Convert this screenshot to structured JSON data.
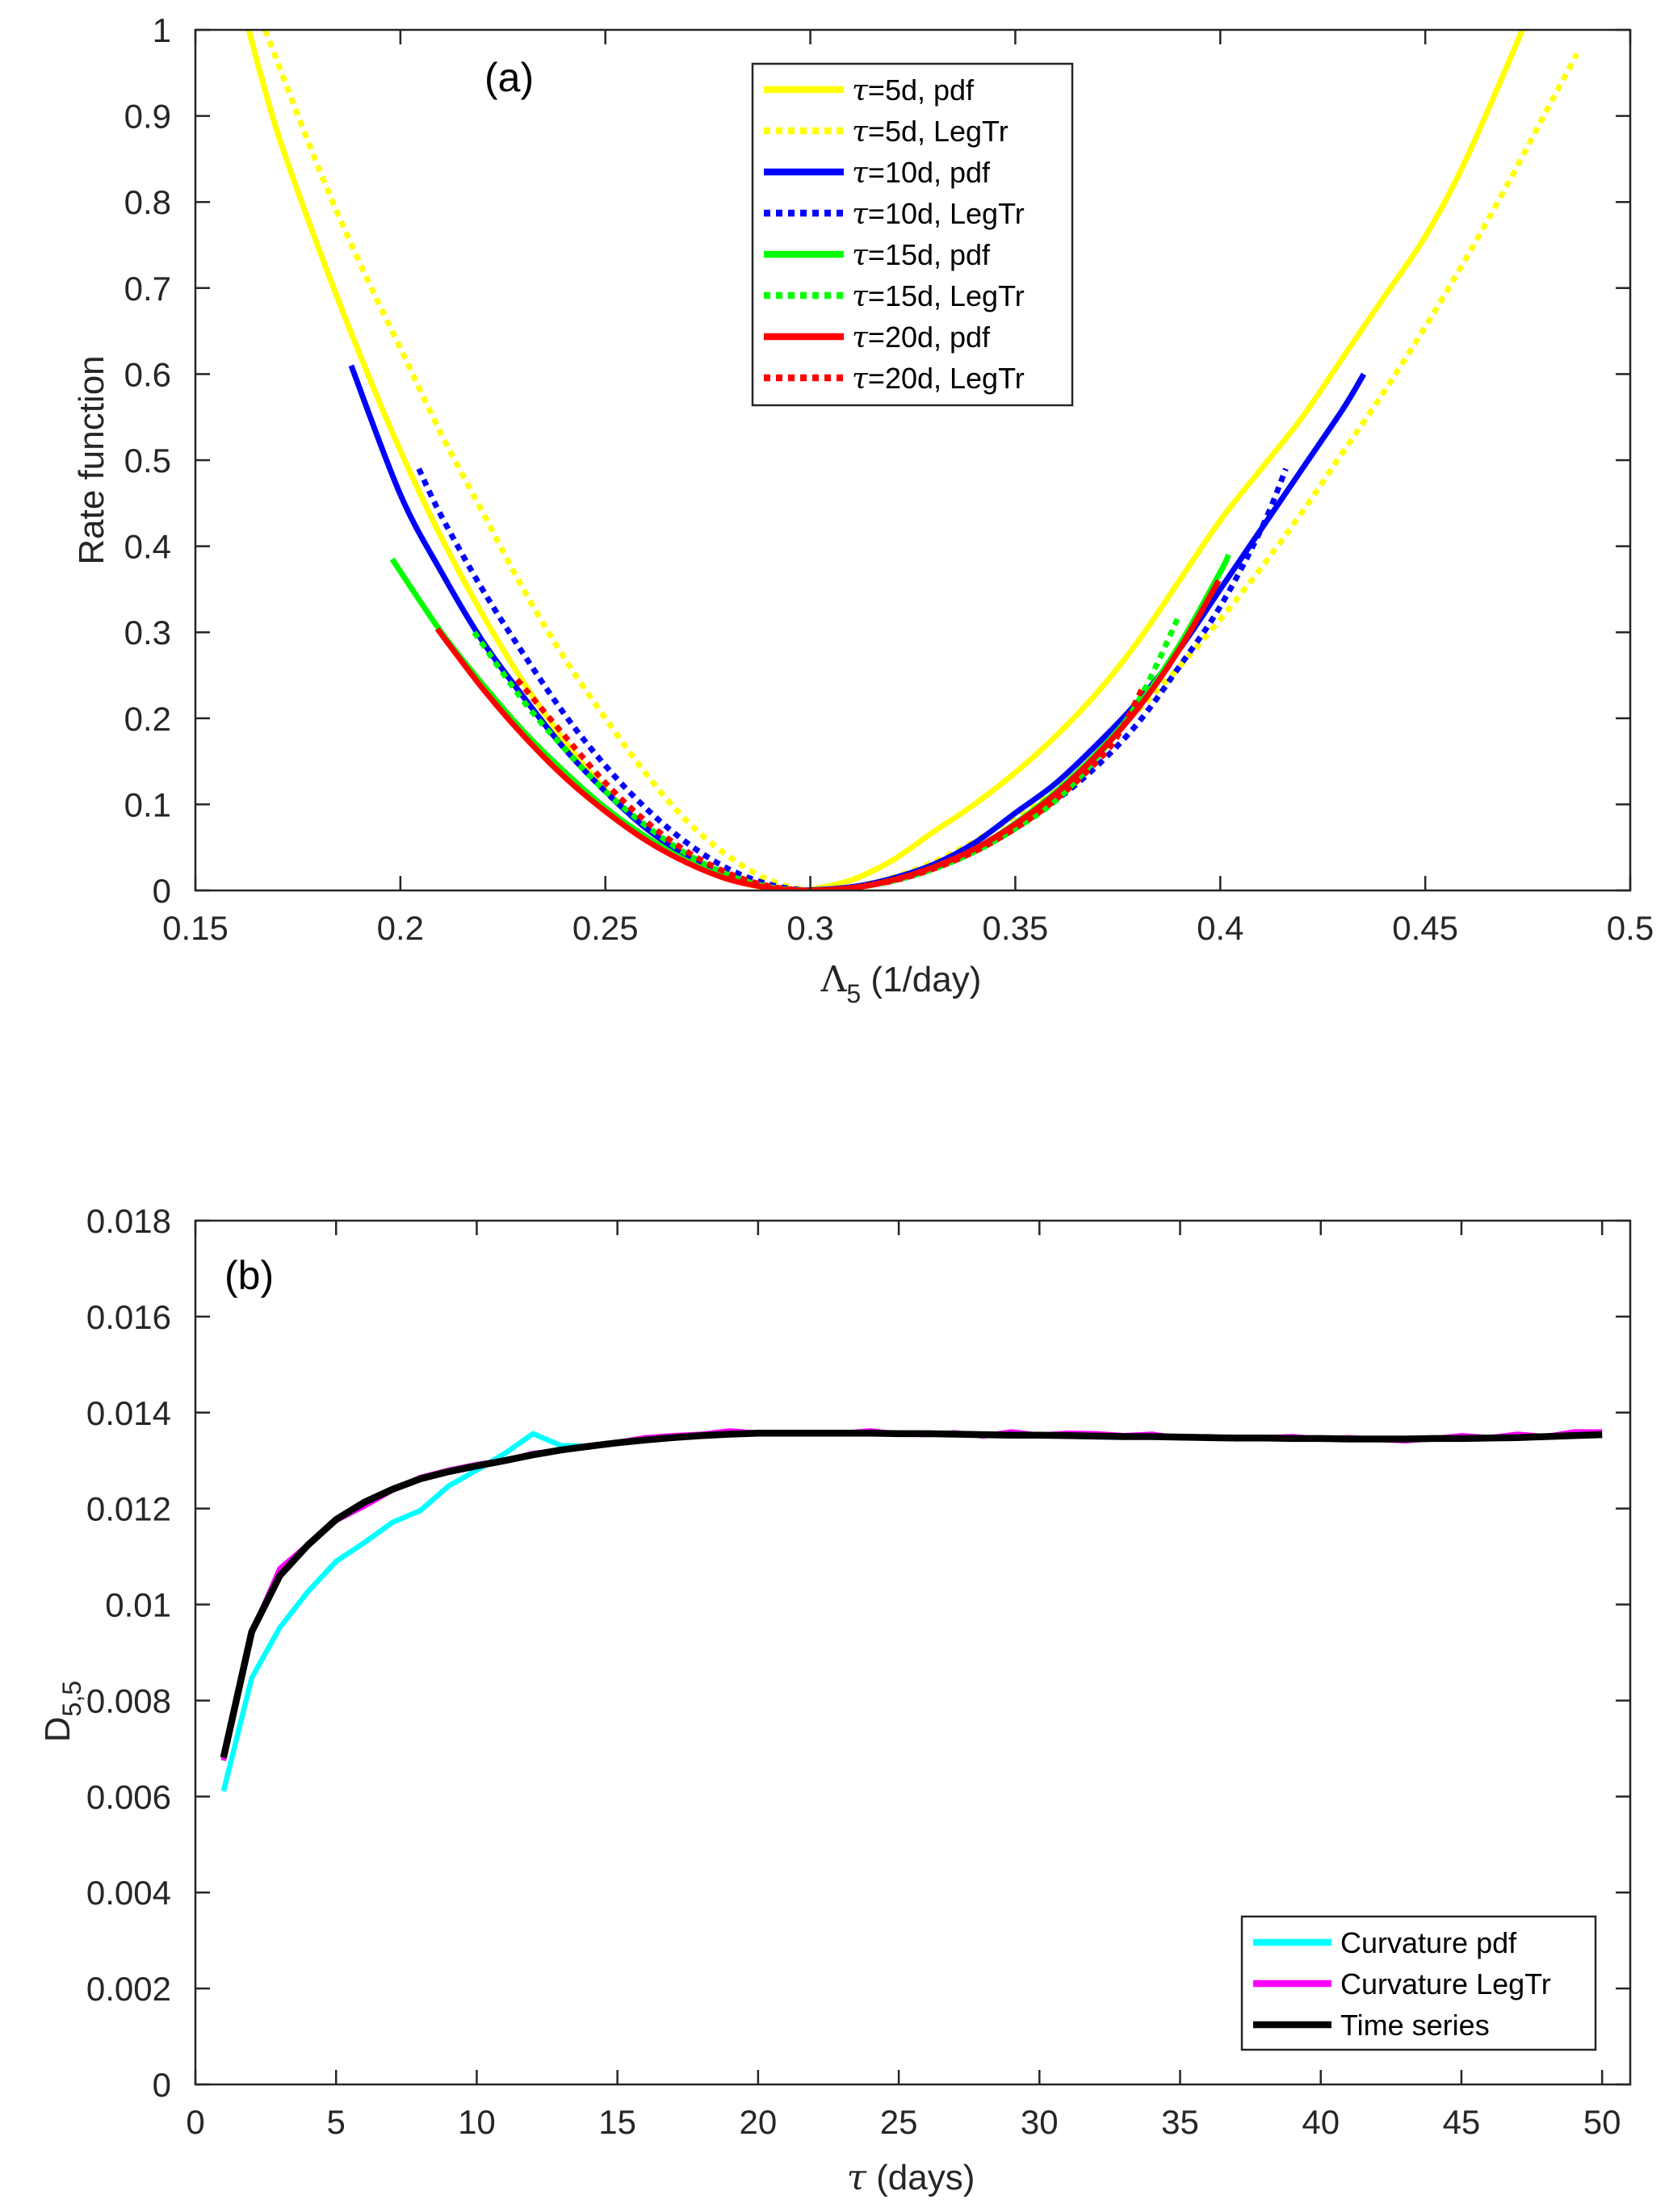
{
  "chart_data": [
    {
      "type": "line",
      "panel_label": "(a)",
      "xlabel": {
        "symbol": "Λ",
        "subscript": "5",
        "text": " (1/day)"
      },
      "ylabel": {
        "text": "Rate function"
      },
      "xlim": [
        0.15,
        0.5
      ],
      "ylim": [
        0,
        1
      ],
      "xticks": [
        0.15,
        0.2,
        0.25,
        0.3,
        0.35,
        0.4,
        0.45,
        0.5
      ],
      "xtick_labels": [
        "0.15",
        "0.2",
        "0.25",
        "0.3",
        "0.35",
        "0.4",
        "0.45",
        "0.5"
      ],
      "yticks": [
        0,
        0.1,
        0.2,
        0.3,
        0.4,
        0.5,
        0.6,
        0.7,
        0.8,
        0.9,
        1
      ],
      "ytick_labels": [
        "0",
        "0.1",
        "0.2",
        "0.3",
        "0.4",
        "0.5",
        "0.6",
        "0.7",
        "0.8",
        "0.9",
        "1"
      ],
      "grid": false,
      "legend_position": "top-center",
      "series": [
        {
          "name": "τ=5d, pdf",
          "color": "#FFFF00",
          "style": "solid",
          "x": [
            0.163,
            0.17,
            0.18,
            0.19,
            0.2,
            0.21,
            0.22,
            0.23,
            0.24,
            0.25,
            0.26,
            0.27,
            0.28,
            0.29,
            0.296,
            0.3,
            0.31,
            0.32,
            0.33,
            0.34,
            0.35,
            0.36,
            0.37,
            0.38,
            0.39,
            0.4,
            0.41,
            0.42,
            0.43,
            0.44,
            0.45,
            0.46,
            0.4737
          ],
          "y": [
            1.0,
            0.881,
            0.747,
            0.624,
            0.511,
            0.41,
            0.321,
            0.242,
            0.174,
            0.117,
            0.072,
            0.0375,
            0.0142,
            0.002,
            0.0,
            0.001,
            0.012,
            0.035,
            0.068,
            0.1,
            0.137,
            0.18,
            0.23,
            0.29,
            0.36,
            0.43,
            0.49,
            0.55,
            0.62,
            0.69,
            0.76,
            0.85,
            1.0
          ]
        },
        {
          "name": "τ=5d, LegTr",
          "color": "#FFFF00",
          "style": "dotted",
          "x": [
            0.167,
            0.18,
            0.19,
            0.2,
            0.21,
            0.22,
            0.23,
            0.24,
            0.25,
            0.26,
            0.27,
            0.28,
            0.29,
            0.3,
            0.31,
            0.32,
            0.33,
            0.34,
            0.35,
            0.36,
            0.37,
            0.38,
            0.39,
            0.4,
            0.41,
            0.42,
            0.43,
            0.44,
            0.45,
            0.46,
            0.47,
            0.48,
            0.487
          ],
          "y": [
            1.0,
            0.84,
            0.73,
            0.63,
            0.53,
            0.44,
            0.35,
            0.27,
            0.2,
            0.135,
            0.08,
            0.04,
            0.012,
            0.0,
            0.004,
            0.015,
            0.033,
            0.057,
            0.087,
            0.12,
            0.165,
            0.21,
            0.26,
            0.315,
            0.375,
            0.44,
            0.51,
            0.58,
            0.655,
            0.735,
            0.82,
            0.91,
            0.972
          ]
        },
        {
          "name": "τ=10d, pdf",
          "color": "#0000FF",
          "style": "solid",
          "x": [
            0.188,
            0.2,
            0.21,
            0.22,
            0.23,
            0.24,
            0.25,
            0.26,
            0.27,
            0.28,
            0.29,
            0.297,
            0.31,
            0.32,
            0.33,
            0.34,
            0.35,
            0.36,
            0.37,
            0.38,
            0.39,
            0.4,
            0.41,
            0.42,
            0.43,
            0.435
          ],
          "y": [
            0.61,
            0.46,
            0.37,
            0.29,
            0.225,
            0.165,
            0.115,
            0.072,
            0.04,
            0.016,
            0.003,
            0.0,
            0.004,
            0.014,
            0.03,
            0.055,
            0.09,
            0.125,
            0.17,
            0.22,
            0.28,
            0.35,
            0.42,
            0.49,
            0.56,
            0.6
          ]
        },
        {
          "name": "τ=10d, LegTr",
          "color": "#0000FF",
          "style": "dotted",
          "x": [
            0.2045,
            0.21,
            0.22,
            0.23,
            0.24,
            0.25,
            0.26,
            0.27,
            0.28,
            0.29,
            0.3,
            0.31,
            0.32,
            0.33,
            0.34,
            0.35,
            0.36,
            0.37,
            0.38,
            0.39,
            0.4,
            0.41,
            0.416
          ],
          "y": [
            0.49,
            0.435,
            0.35,
            0.275,
            0.205,
            0.145,
            0.095,
            0.055,
            0.025,
            0.007,
            0.0,
            0.003,
            0.011,
            0.025,
            0.045,
            0.072,
            0.105,
            0.145,
            0.195,
            0.26,
            0.33,
            0.42,
            0.49
          ]
        },
        {
          "name": "τ=15d, pdf",
          "color": "#00FF00",
          "style": "solid",
          "x": [
            0.198,
            0.21,
            0.22,
            0.23,
            0.24,
            0.25,
            0.26,
            0.27,
            0.28,
            0.29,
            0.298,
            0.31,
            0.32,
            0.33,
            0.34,
            0.35,
            0.36,
            0.37,
            0.38,
            0.39,
            0.4,
            0.402
          ],
          "y": [
            0.385,
            0.3,
            0.24,
            0.185,
            0.138,
            0.096,
            0.062,
            0.034,
            0.014,
            0.003,
            0.0,
            0.003,
            0.012,
            0.027,
            0.048,
            0.078,
            0.115,
            0.16,
            0.215,
            0.285,
            0.37,
            0.39
          ]
        },
        {
          "name": "τ=15d, LegTr",
          "color": "#00FF00",
          "style": "dotted",
          "x": [
            0.218,
            0.23,
            0.24,
            0.25,
            0.26,
            0.27,
            0.28,
            0.29,
            0.3,
            0.31,
            0.32,
            0.33,
            0.34,
            0.35,
            0.36,
            0.37,
            0.38,
            0.39
          ],
          "y": [
            0.3,
            0.22,
            0.165,
            0.115,
            0.075,
            0.042,
            0.018,
            0.004,
            0.0,
            0.003,
            0.011,
            0.025,
            0.045,
            0.072,
            0.105,
            0.155,
            0.22,
            0.32
          ]
        },
        {
          "name": "τ=20d, pdf",
          "color": "#FF0000",
          "style": "solid",
          "x": [
            0.209,
            0.22,
            0.23,
            0.24,
            0.25,
            0.26,
            0.27,
            0.28,
            0.29,
            0.298,
            0.31,
            0.32,
            0.33,
            0.34,
            0.35,
            0.36,
            0.37,
            0.38,
            0.39,
            0.3996
          ],
          "y": [
            0.304,
            0.235,
            0.18,
            0.132,
            0.092,
            0.058,
            0.032,
            0.013,
            0.003,
            0.0,
            0.003,
            0.012,
            0.027,
            0.048,
            0.077,
            0.113,
            0.158,
            0.212,
            0.28,
            0.36
          ]
        },
        {
          "name": "τ=20d, LegTr",
          "color": "#FF0000",
          "style": "dotted",
          "x": [
            0.2285,
            0.24,
            0.25,
            0.26,
            0.27,
            0.28,
            0.29,
            0.3,
            0.31,
            0.32,
            0.33,
            0.34,
            0.35,
            0.36,
            0.37,
            0.375,
            0.381
          ],
          "y": [
            0.245,
            0.18,
            0.125,
            0.08,
            0.045,
            0.02,
            0.005,
            0.0,
            0.003,
            0.011,
            0.025,
            0.045,
            0.072,
            0.106,
            0.15,
            0.18,
            0.235
          ]
        }
      ]
    },
    {
      "type": "line",
      "panel_label": "(b)",
      "xlabel": {
        "symbol": "τ",
        "text": " (days)"
      },
      "ylabel": {
        "symbol": "D",
        "subscript": "5,5"
      },
      "xlim": [
        0,
        51
      ],
      "ylim": [
        0,
        0.018
      ],
      "xticks": [
        0,
        5,
        10,
        15,
        20,
        25,
        30,
        35,
        40,
        45,
        50
      ],
      "xtick_labels": [
        "0",
        "5",
        "10",
        "15",
        "20",
        "25",
        "30",
        "35",
        "40",
        "45",
        "50"
      ],
      "yticks": [
        0,
        0.002,
        0.004,
        0.006,
        0.008,
        0.01,
        0.012,
        0.014,
        0.016,
        0.018
      ],
      "ytick_labels": [
        "0",
        "0.002",
        "0.004",
        "0.006",
        "0.008",
        "0.01",
        "0.012",
        "0.014",
        "0.016",
        "0.018"
      ],
      "grid": false,
      "legend_position": "bottom-right",
      "x": [
        1,
        2,
        3,
        4,
        5,
        6,
        7,
        8,
        9,
        10,
        11,
        12,
        13,
        14,
        15,
        16,
        17,
        18,
        19,
        20,
        21,
        22,
        23,
        24,
        25,
        26,
        27,
        28,
        29,
        30,
        31,
        32,
        33,
        34,
        35,
        36,
        37,
        38,
        39,
        40,
        41,
        42,
        43,
        44,
        45,
        46,
        47,
        48,
        49,
        50
      ],
      "series": [
        {
          "name": "Curvature pdf",
          "color": "#00FFFF",
          "style": "solid",
          "y": [
            0.00611,
            0.00847,
            0.00952,
            0.01027,
            0.0109,
            0.01129,
            0.01171,
            0.01196,
            0.01247,
            0.0128,
            0.01315,
            0.01356,
            0.01331,
            0.0133,
            0.01337,
            0.01343,
            0.01348,
            0.01352,
            0.01355,
            0.01357,
            0.01357,
            0.01357,
            0.01357,
            0.01357,
            0.01356,
            0.01356,
            0.01355,
            0.01354,
            0.01353,
            0.01353,
            0.01352,
            0.01351,
            0.0135,
            0.0135,
            0.01349,
            0.01348,
            0.01347,
            0.01347,
            0.01346,
            0.01346,
            0.01345,
            0.01345,
            0.01345,
            0.01346,
            0.01346,
            0.01347,
            0.01348,
            0.0135,
            0.01352,
            0.01354
          ]
        },
        {
          "name": "Curvature LegTr",
          "color": "#FF00FF",
          "style": "solid",
          "y": [
            0.00675,
            0.0094,
            0.01075,
            0.01125,
            0.01175,
            0.01205,
            0.01238,
            0.01265,
            0.0128,
            0.01292,
            0.013,
            0.01315,
            0.01322,
            0.01328,
            0.01338,
            0.01348,
            0.01352,
            0.01355,
            0.01362,
            0.01357,
            0.01356,
            0.01357,
            0.01357,
            0.01362,
            0.01355,
            0.01354,
            0.01358,
            0.01351,
            0.0136,
            0.01353,
            0.01357,
            0.01356,
            0.01352,
            0.01355,
            0.01347,
            0.0135,
            0.01345,
            0.01348,
            0.0135,
            0.01345,
            0.01348,
            0.01344,
            0.01341,
            0.01346,
            0.01352,
            0.01348,
            0.01355,
            0.0135,
            0.0136,
            0.0136
          ]
        },
        {
          "name": "Time series",
          "color": "#000000",
          "style": "solid",
          "y": [
            0.00681,
            0.00943,
            0.0106,
            0.01124,
            0.01177,
            0.01213,
            0.0124,
            0.01262,
            0.01277,
            0.01289,
            0.013,
            0.01312,
            0.01322,
            0.0133,
            0.01337,
            0.01343,
            0.01348,
            0.01352,
            0.01355,
            0.01357,
            0.01357,
            0.01357,
            0.01357,
            0.01357,
            0.01356,
            0.01356,
            0.01355,
            0.01354,
            0.01353,
            0.01353,
            0.01352,
            0.01351,
            0.0135,
            0.0135,
            0.01349,
            0.01348,
            0.01347,
            0.01347,
            0.01346,
            0.01346,
            0.01345,
            0.01345,
            0.01345,
            0.01346,
            0.01346,
            0.01347,
            0.01348,
            0.0135,
            0.01352,
            0.01354
          ]
        }
      ]
    }
  ]
}
